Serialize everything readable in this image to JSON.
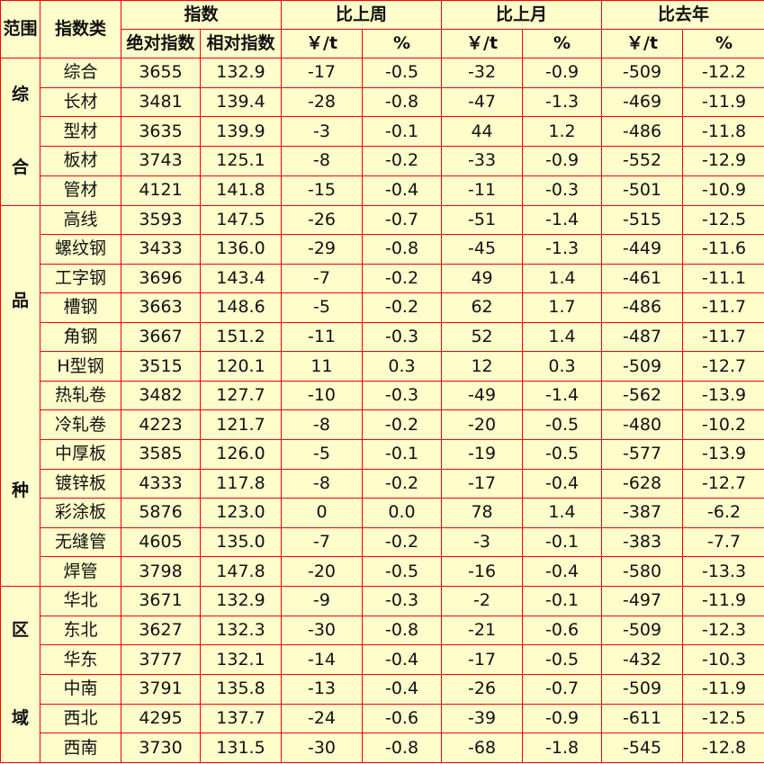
{
  "header": {
    "scope": "范围",
    "category": "指数类",
    "index": "指数",
    "abs": "绝对指数",
    "rel": "相对指数",
    "week": "比上周",
    "month": "比上月",
    "year": "比去年",
    "yuan": "￥/t",
    "pct": "%"
  },
  "groups": [
    {
      "label": "综合",
      "chars": [
        "综",
        "合"
      ],
      "rows": [
        [
          "综合",
          "3655",
          "132.9",
          "-17",
          "-0.5",
          "-32",
          "-0.9",
          "-509",
          "-12.2"
        ],
        [
          "长材",
          "3481",
          "139.4",
          "-28",
          "-0.8",
          "-47",
          "-1.3",
          "-469",
          "-11.9"
        ],
        [
          "型材",
          "3635",
          "139.9",
          "-3",
          "-0.1",
          "44",
          "1.2",
          "-486",
          "-11.8"
        ],
        [
          "板材",
          "3743",
          "125.1",
          "-8",
          "-0.2",
          "-33",
          "-0.9",
          "-552",
          "-12.9"
        ],
        [
          "管材",
          "4121",
          "141.8",
          "-15",
          "-0.4",
          "-11",
          "-0.3",
          "-501",
          "-10.9"
        ]
      ]
    },
    {
      "label": "品种",
      "chars": [
        "品",
        "种"
      ],
      "rows": [
        [
          "高线",
          "3593",
          "147.5",
          "-26",
          "-0.7",
          "-51",
          "-1.4",
          "-515",
          "-12.5"
        ],
        [
          "螺纹钢",
          "3433",
          "136.0",
          "-29",
          "-0.8",
          "-45",
          "-1.3",
          "-449",
          "-11.6"
        ],
        [
          "工字钢",
          "3696",
          "143.4",
          "-7",
          "-0.2",
          "49",
          "1.4",
          "-461",
          "-11.1"
        ],
        [
          "槽钢",
          "3663",
          "148.6",
          "-5",
          "-0.2",
          "62",
          "1.7",
          "-486",
          "-11.7"
        ],
        [
          "角钢",
          "3667",
          "151.2",
          "-11",
          "-0.3",
          "52",
          "1.4",
          "-487",
          "-11.7"
        ],
        [
          "H型钢",
          "3515",
          "120.1",
          "11",
          "0.3",
          "12",
          "0.3",
          "-509",
          "-12.7"
        ],
        [
          "热轧卷",
          "3482",
          "127.7",
          "-10",
          "-0.3",
          "-49",
          "-1.4",
          "-562",
          "-13.9"
        ],
        [
          "冷轧卷",
          "4223",
          "121.7",
          "-8",
          "-0.2",
          "-20",
          "-0.5",
          "-480",
          "-10.2"
        ],
        [
          "中厚板",
          "3585",
          "126.0",
          "-5",
          "-0.1",
          "-19",
          "-0.5",
          "-577",
          "-13.9"
        ],
        [
          "镀锌板",
          "4333",
          "117.8",
          "-8",
          "-0.2",
          "-17",
          "-0.4",
          "-628",
          "-12.7"
        ],
        [
          "彩涂板",
          "5876",
          "123.0",
          "0",
          "0.0",
          "78",
          "1.4",
          "-387",
          "-6.2"
        ],
        [
          "无缝管",
          "4605",
          "135.0",
          "-7",
          "-0.2",
          "-3",
          "-0.1",
          "-383",
          "-7.7"
        ],
        [
          "焊管",
          "3798",
          "147.8",
          "-20",
          "-0.5",
          "-16",
          "-0.4",
          "-580",
          "-13.3"
        ]
      ]
    },
    {
      "label": "区域",
      "chars": [
        "区",
        "域"
      ],
      "rows": [
        [
          "华北",
          "3671",
          "132.9",
          "-9",
          "-0.3",
          "-2",
          "-0.1",
          "-497",
          "-11.9"
        ],
        [
          "东北",
          "3627",
          "132.3",
          "-30",
          "-0.8",
          "-21",
          "-0.6",
          "-509",
          "-12.3"
        ],
        [
          "华东",
          "3777",
          "132.1",
          "-14",
          "-0.4",
          "-17",
          "-0.5",
          "-432",
          "-10.3"
        ],
        [
          "中南",
          "3791",
          "135.8",
          "-13",
          "-0.4",
          "-26",
          "-0.7",
          "-509",
          "-11.9"
        ],
        [
          "西北",
          "4295",
          "137.7",
          "-24",
          "-0.6",
          "-39",
          "-0.9",
          "-611",
          "-12.5"
        ],
        [
          "西南",
          "3730",
          "131.5",
          "-30",
          "-0.8",
          "-68",
          "-1.8",
          "-545",
          "-12.8"
        ]
      ]
    }
  ],
  "colors": {
    "background": "#FFFFCC",
    "border": "#FF0000"
  }
}
